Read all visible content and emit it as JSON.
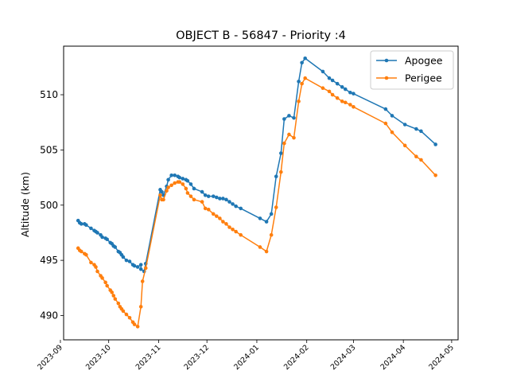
{
  "chart_data": {
    "type": "line",
    "title": "OBJECT B - 56847 - Priority :4",
    "xlabel": "",
    "ylabel": "Altitude (km)",
    "xlim": [
      "2023-09-03",
      "2024-05-05"
    ],
    "ylim": [
      487.8,
      514.4
    ],
    "x_ticks": [
      "2023-09",
      "2023-10",
      "2023-11",
      "2023-12",
      "2024-01",
      "2024-02",
      "2024-03",
      "2024-04",
      "2024-05"
    ],
    "y_ticks": [
      490,
      495,
      500,
      505,
      510
    ],
    "legend_position": "top-right",
    "colors": {
      "Apogee": "#1f77b4",
      "Perigee": "#ff7f0e"
    },
    "series": [
      {
        "name": "Apogee",
        "points": [
          [
            "2023-09-12",
            498.6
          ],
          [
            "2023-09-13",
            498.4
          ],
          [
            "2023-09-14",
            498.3
          ],
          [
            "2023-09-16",
            498.3
          ],
          [
            "2023-09-17",
            498.2
          ],
          [
            "2023-09-20",
            497.9
          ],
          [
            "2023-09-22",
            497.7
          ],
          [
            "2023-09-23",
            497.6
          ],
          [
            "2023-09-24",
            497.5
          ],
          [
            "2023-09-26",
            497.3
          ],
          [
            "2023-09-27",
            497.1
          ],
          [
            "2023-09-29",
            497.0
          ],
          [
            "2023-09-30",
            496.9
          ],
          [
            "2023-10-02",
            496.6
          ],
          [
            "2023-10-03",
            496.5
          ],
          [
            "2023-10-04",
            496.3
          ],
          [
            "2023-10-05",
            496.2
          ],
          [
            "2023-10-07",
            495.8
          ],
          [
            "2023-10-08",
            495.7
          ],
          [
            "2023-10-09",
            495.5
          ],
          [
            "2023-10-10",
            495.3
          ],
          [
            "2023-10-12",
            495.0
          ],
          [
            "2023-10-14",
            494.9
          ],
          [
            "2023-10-16",
            494.6
          ],
          [
            "2023-10-17",
            494.5
          ],
          [
            "2023-10-19",
            494.4
          ],
          [
            "2023-10-21",
            494.6
          ],
          [
            "2023-10-21",
            494.2
          ],
          [
            "2023-10-23",
            494.0
          ],
          [
            "2023-10-24",
            494.7
          ],
          [
            "2023-11-02",
            501.4
          ],
          [
            "2023-11-03",
            501.2
          ],
          [
            "2023-11-04",
            500.9
          ],
          [
            "2023-11-06",
            501.7
          ],
          [
            "2023-11-07",
            502.3
          ],
          [
            "2023-11-09",
            502.7
          ],
          [
            "2023-11-11",
            502.7
          ],
          [
            "2023-11-13",
            502.6
          ],
          [
            "2023-11-14",
            502.5
          ],
          [
            "2023-11-16",
            502.4
          ],
          [
            "2023-11-18",
            502.3
          ],
          [
            "2023-11-19",
            502.2
          ],
          [
            "2023-11-21",
            501.9
          ],
          [
            "2023-11-23",
            501.5
          ],
          [
            "2023-11-28",
            501.2
          ],
          [
            "2023-11-30",
            500.9
          ],
          [
            "2023-12-02",
            500.8
          ],
          [
            "2023-12-05",
            500.8
          ],
          [
            "2023-12-07",
            500.7
          ],
          [
            "2023-12-09",
            500.6
          ],
          [
            "2023-12-11",
            500.6
          ],
          [
            "2023-12-13",
            500.5
          ],
          [
            "2023-12-15",
            500.3
          ],
          [
            "2023-12-17",
            500.1
          ],
          [
            "2023-12-19",
            499.9
          ],
          [
            "2023-12-22",
            499.7
          ],
          [
            "2024-01-03",
            498.8
          ],
          [
            "2024-01-07",
            498.5
          ],
          [
            "2024-01-10",
            499.2
          ],
          [
            "2024-01-13",
            502.6
          ],
          [
            "2024-01-16",
            504.7
          ],
          [
            "2024-01-18",
            507.8
          ],
          [
            "2024-01-21",
            508.1
          ],
          [
            "2024-01-24",
            507.9
          ],
          [
            "2024-01-27",
            511.2
          ],
          [
            "2024-01-29",
            512.9
          ],
          [
            "2024-01-31",
            513.3
          ],
          [
            "2024-02-11",
            512.1
          ],
          [
            "2024-02-15",
            511.5
          ],
          [
            "2024-02-17",
            511.3
          ],
          [
            "2024-02-20",
            511.0
          ],
          [
            "2024-02-23",
            510.7
          ],
          [
            "2024-02-25",
            510.5
          ],
          [
            "2024-02-28",
            510.2
          ],
          [
            "2024-03-01",
            510.1
          ],
          [
            "2024-03-21",
            508.7
          ],
          [
            "2024-03-25",
            508.1
          ],
          [
            "2024-04-02",
            507.3
          ],
          [
            "2024-04-09",
            506.9
          ],
          [
            "2024-04-12",
            506.7
          ],
          [
            "2024-04-21",
            505.5
          ]
        ]
      },
      {
        "name": "Perigee",
        "points": [
          [
            "2023-09-12",
            496.1
          ],
          [
            "2023-09-13",
            495.9
          ],
          [
            "2023-09-14",
            495.8
          ],
          [
            "2023-09-16",
            495.6
          ],
          [
            "2023-09-17",
            495.5
          ],
          [
            "2023-09-20",
            494.8
          ],
          [
            "2023-09-22",
            494.6
          ],
          [
            "2023-09-23",
            494.4
          ],
          [
            "2023-09-24",
            494.0
          ],
          [
            "2023-09-26",
            493.6
          ],
          [
            "2023-09-27",
            493.4
          ],
          [
            "2023-09-29",
            493.0
          ],
          [
            "2023-09-30",
            492.7
          ],
          [
            "2023-10-02",
            492.3
          ],
          [
            "2023-10-03",
            492.1
          ],
          [
            "2023-10-04",
            491.8
          ],
          [
            "2023-10-05",
            491.5
          ],
          [
            "2023-10-07",
            491.1
          ],
          [
            "2023-10-08",
            490.8
          ],
          [
            "2023-10-09",
            490.6
          ],
          [
            "2023-10-10",
            490.4
          ],
          [
            "2023-10-12",
            490.1
          ],
          [
            "2023-10-14",
            489.8
          ],
          [
            "2023-10-16",
            489.4
          ],
          [
            "2023-10-17",
            489.2
          ],
          [
            "2023-10-19",
            489.0
          ],
          [
            "2023-10-21",
            490.8
          ],
          [
            "2023-10-22",
            493.1
          ],
          [
            "2023-10-24",
            494.3
          ],
          [
            "2023-11-02",
            500.9
          ],
          [
            "2023-11-03",
            500.5
          ],
          [
            "2023-11-04",
            500.5
          ],
          [
            "2023-11-06",
            501.3
          ],
          [
            "2023-11-07",
            501.6
          ],
          [
            "2023-11-09",
            501.8
          ],
          [
            "2023-11-11",
            502.0
          ],
          [
            "2023-11-13",
            502.1
          ],
          [
            "2023-11-14",
            502.1
          ],
          [
            "2023-11-16",
            501.9
          ],
          [
            "2023-11-18",
            501.5
          ],
          [
            "2023-11-19",
            501.1
          ],
          [
            "2023-11-21",
            500.8
          ],
          [
            "2023-11-23",
            500.5
          ],
          [
            "2023-11-28",
            500.3
          ],
          [
            "2023-11-30",
            499.7
          ],
          [
            "2023-12-02",
            499.6
          ],
          [
            "2023-12-05",
            499.2
          ],
          [
            "2023-12-07",
            499.0
          ],
          [
            "2023-12-09",
            498.8
          ],
          [
            "2023-12-11",
            498.5
          ],
          [
            "2023-12-13",
            498.3
          ],
          [
            "2023-12-15",
            498.0
          ],
          [
            "2023-12-17",
            497.8
          ],
          [
            "2023-12-19",
            497.6
          ],
          [
            "2023-12-22",
            497.3
          ],
          [
            "2024-01-03",
            496.2
          ],
          [
            "2024-01-07",
            495.8
          ],
          [
            "2024-01-10",
            497.3
          ],
          [
            "2024-01-13",
            499.8
          ],
          [
            "2024-01-16",
            503.0
          ],
          [
            "2024-01-18",
            505.6
          ],
          [
            "2024-01-21",
            506.4
          ],
          [
            "2024-01-24",
            506.1
          ],
          [
            "2024-01-27",
            509.4
          ],
          [
            "2024-01-29",
            511.0
          ],
          [
            "2024-01-31",
            511.5
          ],
          [
            "2024-02-11",
            510.6
          ],
          [
            "2024-02-15",
            510.3
          ],
          [
            "2024-02-17",
            510.0
          ],
          [
            "2024-02-20",
            509.7
          ],
          [
            "2024-02-23",
            509.4
          ],
          [
            "2024-02-25",
            509.3
          ],
          [
            "2024-02-28",
            509.1
          ],
          [
            "2024-03-01",
            508.9
          ],
          [
            "2024-03-21",
            507.4
          ],
          [
            "2024-03-25",
            506.6
          ],
          [
            "2024-04-02",
            505.4
          ],
          [
            "2024-04-09",
            504.4
          ],
          [
            "2024-04-12",
            504.1
          ],
          [
            "2024-04-21",
            502.7
          ]
        ]
      }
    ]
  }
}
